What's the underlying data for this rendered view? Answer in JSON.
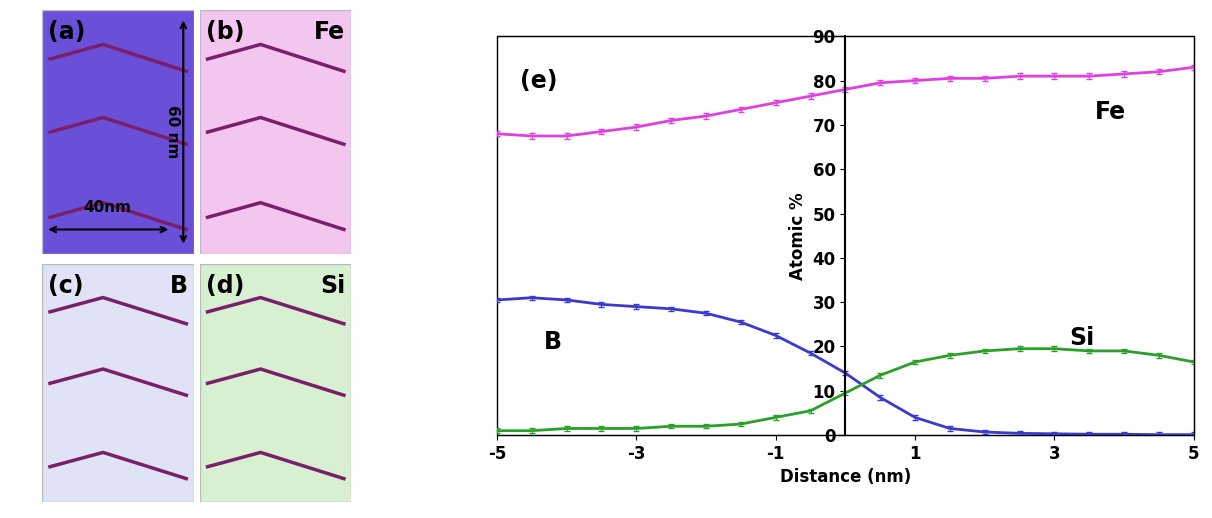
{
  "panels": [
    {
      "label": "(a)",
      "annotations": [
        "60 nm",
        "40nm"
      ]
    },
    {
      "label": "(b)",
      "element": "Fe"
    },
    {
      "label": "(c)",
      "element": "B"
    },
    {
      "label": "(d)",
      "element": "Si"
    }
  ],
  "chart_data": {
    "type": "line",
    "panel_label": "(e)",
    "x_label": "Distance (nm)",
    "y_label": "Atomic %",
    "x": [
      -5,
      -4.5,
      -4,
      -3.5,
      -3,
      -2.5,
      -2,
      -1.5,
      -1,
      -0.5,
      0,
      0.5,
      1,
      1.5,
      2,
      2.5,
      3,
      3.5,
      4,
      4.5,
      5
    ],
    "series": [
      {
        "name": "Fe",
        "color": "#e040e0",
        "error": 0.6,
        "values": [
          68,
          67.5,
          67.5,
          68.5,
          69.5,
          71,
          72,
          73.5,
          75,
          76.5,
          78,
          79.5,
          80,
          80.5,
          80.5,
          81,
          81,
          81,
          81.5,
          82,
          83
        ]
      },
      {
        "name": "B",
        "color": "#3a3ad0",
        "error": 0.5,
        "values": [
          30.5,
          31,
          30.5,
          29.5,
          29,
          28.5,
          27.5,
          25.5,
          22.5,
          18.5,
          14,
          8.5,
          4,
          1.5,
          0.7,
          0.4,
          0.3,
          0.2,
          0.2,
          0.1,
          0.1
        ]
      },
      {
        "name": "Si",
        "color": "#2aa02a",
        "error": 0.5,
        "values": [
          1,
          1,
          1.5,
          1.5,
          1.5,
          2,
          2,
          2.5,
          4,
          5.5,
          9.5,
          13.5,
          16.5,
          18,
          19,
          19.5,
          19.5,
          19,
          19,
          18,
          16.5
        ]
      }
    ],
    "xlim": [
      -5,
      5
    ],
    "xticks": [
      -5,
      -3,
      -1,
      1,
      3,
      5
    ],
    "ylim": [
      0,
      90
    ],
    "yticks": [
      0,
      10,
      20,
      30,
      40,
      50,
      60,
      70,
      80,
      90
    ],
    "grid": false
  }
}
